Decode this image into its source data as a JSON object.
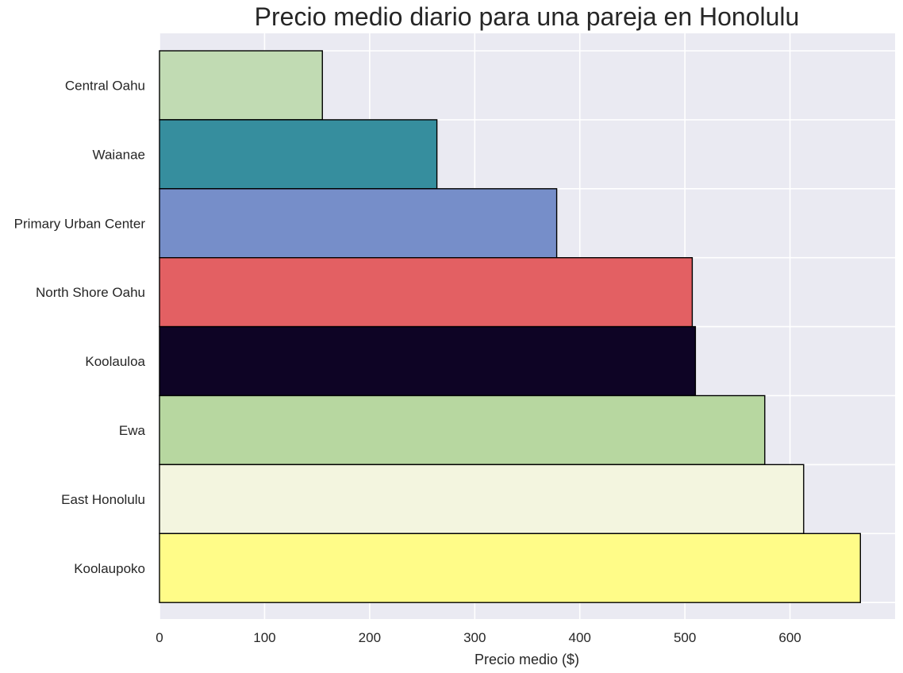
{
  "chart_data": {
    "type": "bar",
    "orientation": "horizontal",
    "title": "Precio medio diario para una pareja en Honolulu",
    "xlabel": "Precio medio ($)",
    "ylabel": "",
    "xlim": [
      0,
      700
    ],
    "xticks": [
      0,
      100,
      200,
      300,
      400,
      500,
      600
    ],
    "grid": true,
    "legend": "none",
    "categories": [
      "Central Oahu",
      "Waianae",
      "Primary Urban Center",
      "North Shore Oahu",
      "Koolauloa",
      "Ewa",
      "East Honolulu",
      "Koolaupoko"
    ],
    "values": [
      155,
      264,
      378,
      507,
      510,
      576,
      613,
      667
    ],
    "colors": [
      "#c1dbb3",
      "#368e9e",
      "#768ec9",
      "#e36063",
      "#0e0425",
      "#b7d7a0",
      "#f3f5df",
      "#fffc88"
    ],
    "background_color": "#eaeaf2",
    "grid_color": "#ffffff",
    "edge_color": "#000000"
  }
}
